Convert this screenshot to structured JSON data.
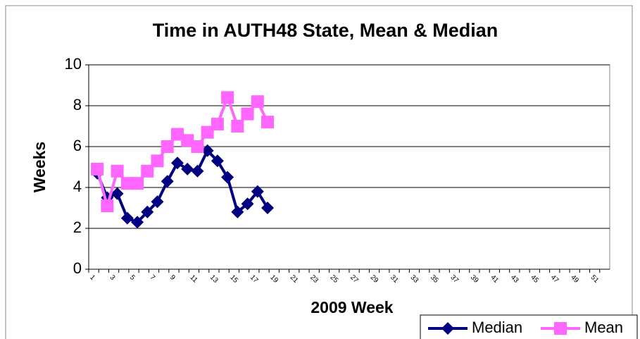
{
  "chart_data": {
    "type": "line",
    "title": "Time in AUTH48 State, Mean & Median",
    "x_label": "2009 Week",
    "y_label": "Weeks",
    "categories": [
      "1",
      null,
      "3",
      null,
      "5",
      null,
      "7",
      null,
      "9",
      null,
      "11",
      null,
      "13",
      null,
      "15",
      null,
      "17",
      null,
      "19",
      null,
      "21",
      null,
      "23",
      null,
      "25",
      null,
      "27",
      null,
      "29",
      null,
      "31",
      null,
      "33",
      null,
      "35",
      null,
      "37",
      null,
      "39",
      null,
      "41",
      null,
      "43",
      null,
      "45",
      null,
      "47",
      null,
      "49",
      null,
      "51",
      null
    ],
    "series": [
      {
        "name": "Median",
        "color": "#000080",
        "marker": "diamond",
        "values": [
          4.7,
          3.5,
          3.7,
          2.5,
          2.3,
          2.8,
          3.3,
          4.3,
          5.2,
          4.9,
          4.8,
          5.8,
          5.3,
          4.5,
          2.8,
          3.2,
          3.8,
          3.0,
          null,
          null,
          null,
          null,
          null,
          null,
          null,
          null,
          null,
          null,
          null,
          null,
          null,
          null,
          null,
          null,
          null,
          null,
          null,
          null,
          null,
          null,
          null,
          null,
          null,
          null,
          null,
          null,
          null,
          null,
          null,
          null,
          null,
          null
        ]
      },
      {
        "name": "Mean",
        "color": "#FF66FF",
        "marker": "square",
        "values": [
          4.9,
          3.1,
          4.8,
          4.2,
          4.2,
          4.8,
          5.3,
          6.0,
          6.6,
          6.3,
          6.0,
          6.7,
          7.1,
          8.4,
          7.0,
          7.6,
          8.2,
          7.2,
          null,
          null,
          null,
          null,
          null,
          null,
          null,
          null,
          null,
          null,
          null,
          null,
          null,
          null,
          null,
          null,
          null,
          null,
          null,
          null,
          null,
          null,
          null,
          null,
          null,
          null,
          null,
          null,
          null,
          null,
          null,
          null,
          null,
          null
        ]
      }
    ],
    "ylim": [
      0,
      10
    ],
    "yticks": [
      0,
      2,
      4,
      6,
      8,
      10
    ],
    "grid": true,
    "legend": "bottom-right"
  }
}
